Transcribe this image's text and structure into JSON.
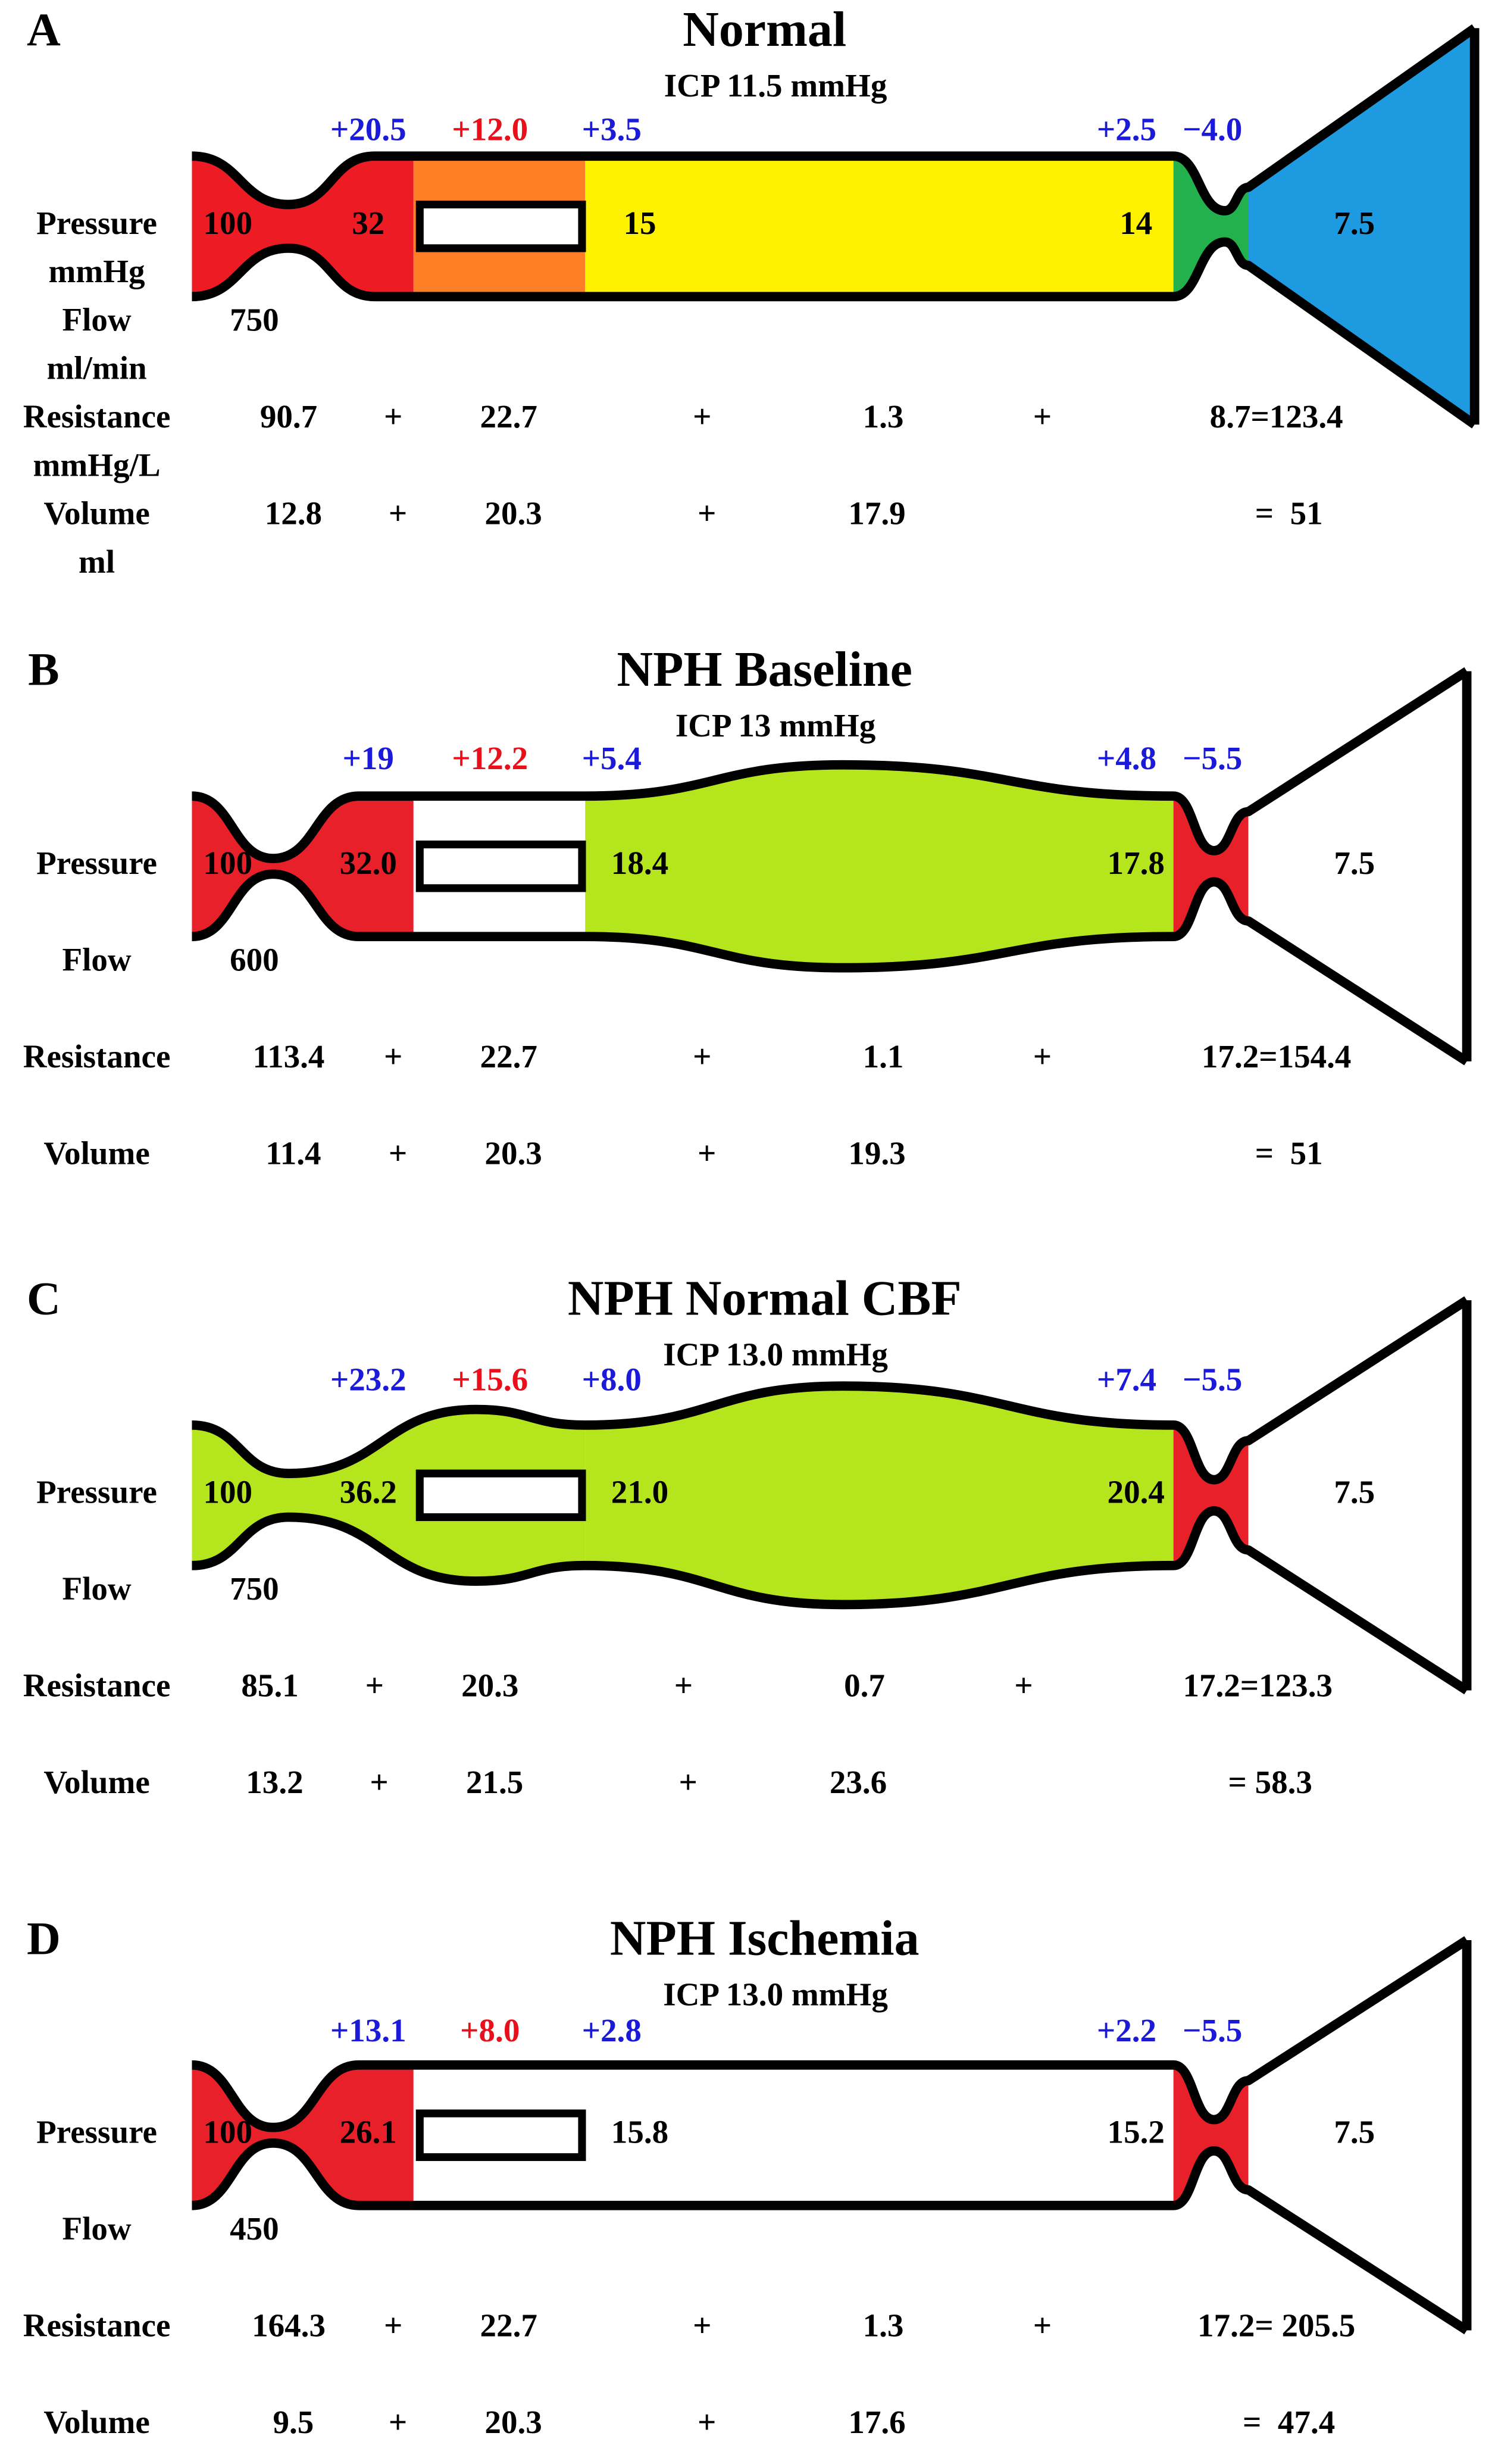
{
  "panels": [
    {
      "letter": "A",
      "title": "Normal",
      "icp": "ICP 11.5 mmHg",
      "deltas": [
        "+20.5",
        "+12.0",
        "+3.5",
        "+2.5",
        "−4.0"
      ],
      "pressures": [
        "100",
        "32",
        "15",
        "14",
        "7.5"
      ],
      "row_labels": [
        [
          "Pressure",
          "mmHg"
        ],
        [
          "Flow",
          "ml/min"
        ],
        [
          "Resistance",
          "mmHg/L"
        ],
        [
          "Volume",
          "ml"
        ]
      ],
      "flow": "750",
      "resistance": [
        "90.7",
        "+",
        "22.7",
        "+",
        "1.3",
        "+",
        "8.7=123.4"
      ],
      "volume": [
        "12.8",
        "+",
        "20.3",
        "+",
        "17.9",
        "=  51"
      ]
    },
    {
      "letter": "B",
      "title": "NPH Baseline",
      "icp": "ICP 13 mmHg",
      "deltas": [
        "+19",
        "+12.2",
        "+5.4",
        "+4.8",
        "−5.5"
      ],
      "pressures": [
        "100",
        "32.0",
        "18.4",
        "17.8",
        "7.5"
      ],
      "row_labels": [
        [
          "Pressure"
        ],
        [
          "Flow"
        ],
        [
          "Resistance"
        ],
        [
          "Volume"
        ]
      ],
      "flow": "600",
      "resistance": [
        "113.4",
        "+",
        "22.7",
        "+",
        "1.1",
        "+",
        "17.2=154.4"
      ],
      "volume": [
        "11.4",
        "+",
        "20.3",
        "+",
        "19.3",
        "=  51"
      ]
    },
    {
      "letter": "C",
      "title": "NPH Normal CBF",
      "icp": "ICP 13.0 mmHg",
      "deltas": [
        "+23.2",
        "+15.6",
        "+8.0",
        "+7.4",
        "−5.5"
      ],
      "pressures": [
        "100",
        "36.2",
        "21.0",
        "20.4",
        "7.5"
      ],
      "row_labels": [
        [
          "Pressure"
        ],
        [
          "Flow"
        ],
        [
          "Resistance"
        ],
        [
          "Volume"
        ]
      ],
      "flow": "750",
      "resistance": [
        "85.1",
        "+",
        "20.3",
        "+",
        "0.7",
        "+",
        "17.2=123.3"
      ],
      "volume": [
        "13.2",
        "+",
        "21.5",
        "+",
        "23.6",
        "= 58.3"
      ]
    },
    {
      "letter": "D",
      "title": "NPH Ischemia",
      "icp": "ICP 13.0 mmHg",
      "deltas": [
        "+13.1",
        "+8.0",
        "+2.8",
        "+2.2",
        "−5.5"
      ],
      "pressures": [
        "100",
        "26.1",
        "15.8",
        "15.2",
        "7.5"
      ],
      "row_labels": [
        [
          "Pressure"
        ],
        [
          "Flow"
        ],
        [
          "Resistance"
        ],
        [
          "Volume"
        ]
      ],
      "flow": "450",
      "resistance": [
        "164.3",
        "+",
        "22.7",
        "+",
        "1.3",
        "+",
        "17.2=  205.5"
      ],
      "volume": [
        "9.5",
        "+",
        "20.3",
        "+",
        "17.6",
        "=  47.4"
      ]
    }
  ]
}
